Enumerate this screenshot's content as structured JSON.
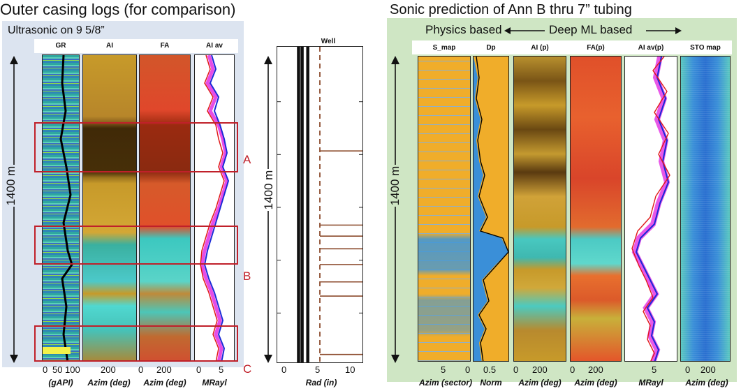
{
  "left_title": "Outer casing logs (for comparison)",
  "left_subtitle": "Ultrasonic  on 9 5/8”",
  "right_title": "Sonic prediction of Ann B thru 7” tubing",
  "physics_label": "Physics based",
  "deepml_label": "Deep ML  based",
  "depth_label": "1400 m",
  "colors": {
    "left_bg": "#dce4f0",
    "right_bg": "#cfe6c4",
    "box_red": "#c0202a",
    "well_brown": "#8b4a2b"
  },
  "chart_data": [
    {
      "type": "heatmap",
      "panel": "outer-casing-logs",
      "tracks": [
        {
          "name": "GR",
          "ticks": [
            "0",
            "50",
            "100"
          ],
          "unit": "(gAPI)"
        },
        {
          "name": "AI",
          "ticks": [
            "200"
          ],
          "unit": "Azim (deg)"
        },
        {
          "name": "FA",
          "ticks": [
            "0",
            "200"
          ],
          "unit": "Azim (deg)"
        },
        {
          "name": "AI av",
          "ticks": [
            "0",
            "5"
          ],
          "unit": "MRayl"
        }
      ],
      "boxes": [
        {
          "label": "A",
          "top": 0.17,
          "bottom": 0.395
        },
        {
          "label": "B",
          "top": 0.57,
          "bottom": 0.745
        },
        {
          "label": "C",
          "top": 0.895,
          "bottom": 1.0
        }
      ]
    },
    {
      "type": "line",
      "panel": "well-schematic",
      "title": "Well",
      "xlabel": "Rad (in)",
      "xticks": [
        "0",
        "5",
        "10"
      ],
      "xlim": [
        0,
        12
      ],
      "series": [
        {
          "x": 3.0
        },
        {
          "x": 3.5
        },
        {
          "x": 4.3
        },
        {
          "x": 6.0
        }
      ],
      "steps_depth_frac": [
        0.33,
        0.565,
        0.6,
        0.64,
        0.69,
        0.745,
        0.79,
        0.975
      ]
    },
    {
      "type": "heatmap",
      "panel": "sonic-prediction",
      "tracks": [
        {
          "name": "S_map",
          "ticks": [
            "5",
            "0"
          ],
          "unit": "Azim (sector)"
        },
        {
          "name": "Dp",
          "ticks": [
            "0.5"
          ],
          "unit": "Norm"
        },
        {
          "name": "AI (p)",
          "ticks": [
            "0",
            "200"
          ],
          "unit": "Azim (deg)"
        },
        {
          "name": "FA(p)",
          "ticks": [
            "0",
            "200"
          ],
          "unit": "Azim (deg)"
        },
        {
          "name": "AI av(p)",
          "ticks": [
            "5"
          ],
          "unit": "MRayl"
        },
        {
          "name": "STO map",
          "ticks": [
            "0",
            "200"
          ],
          "unit": "Azim (deg)"
        }
      ]
    }
  ]
}
